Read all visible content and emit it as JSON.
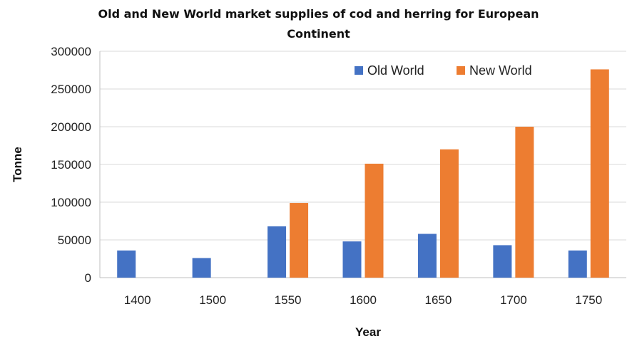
{
  "chart_data": {
    "type": "bar",
    "title_lines": [
      "Old and New World market supplies of cod and herring for European",
      "Continent"
    ],
    "xlabel": "Year",
    "ylabel": "Tonne",
    "categories": [
      "1400",
      "1500",
      "1550",
      "1600",
      "1650",
      "1700",
      "1750"
    ],
    "series": [
      {
        "name": "Old World",
        "color": "#4472C4",
        "values": [
          36000,
          26000,
          68000,
          48000,
          58000,
          43000,
          36000
        ]
      },
      {
        "name": "New World",
        "color": "#ED7D31",
        "values": [
          0,
          0,
          99000,
          151000,
          170000,
          200000,
          276000
        ]
      }
    ],
    "ylim": [
      0,
      300000
    ],
    "yticks": [
      "0",
      "50000",
      "100000",
      "150000",
      "200000",
      "250000",
      "300000"
    ],
    "grid": true,
    "legend_position": "top-right"
  }
}
